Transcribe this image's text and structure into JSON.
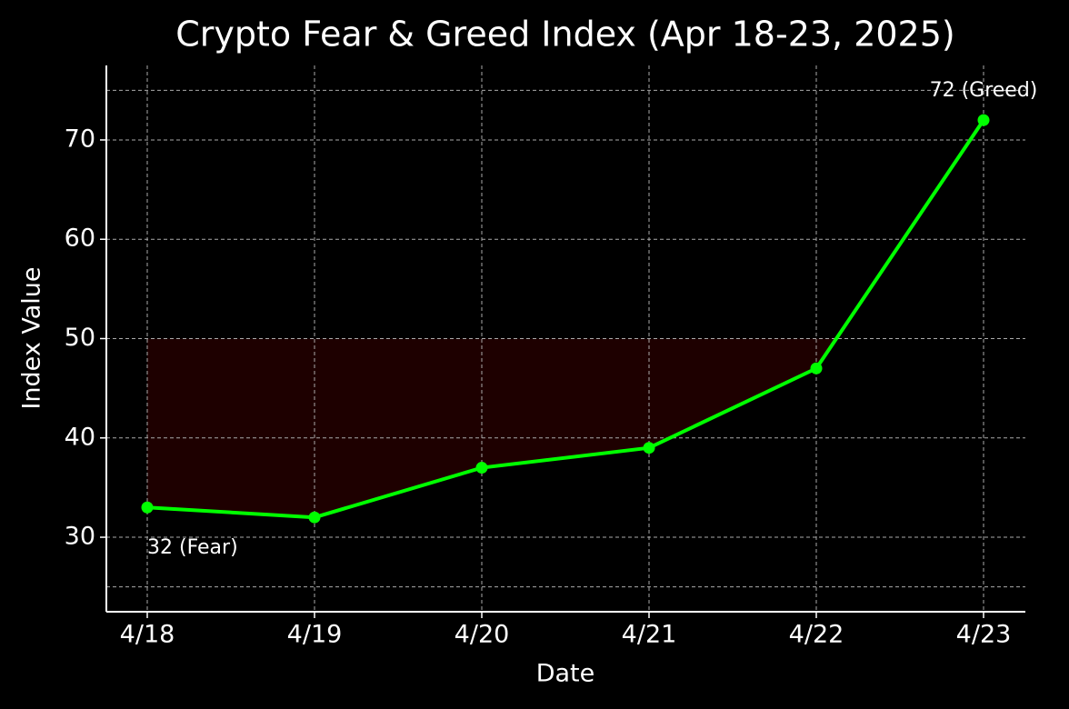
{
  "chart_data": {
    "type": "line",
    "title": "Crypto Fear & Greed Index (Apr 18-23, 2025)",
    "x_label": "Date",
    "y_label": "Index Value",
    "categories": [
      "4/18",
      "4/19",
      "4/20",
      "4/21",
      "4/22",
      "4/23"
    ],
    "series": [
      {
        "name": "Index Value",
        "color": "#00ff00",
        "values": [
          33,
          32,
          37,
          39,
          47,
          72
        ]
      }
    ],
    "ylim": [
      22.5,
      77.5
    ],
    "yticks": [
      30,
      40,
      50,
      60,
      70
    ],
    "reference_lines": [
      25,
      75
    ],
    "fill_threshold": 50,
    "fill_color": "#1e0000",
    "annotations": [
      "32 (Fear)",
      "72 (Greed)"
    ],
    "grid": true
  }
}
